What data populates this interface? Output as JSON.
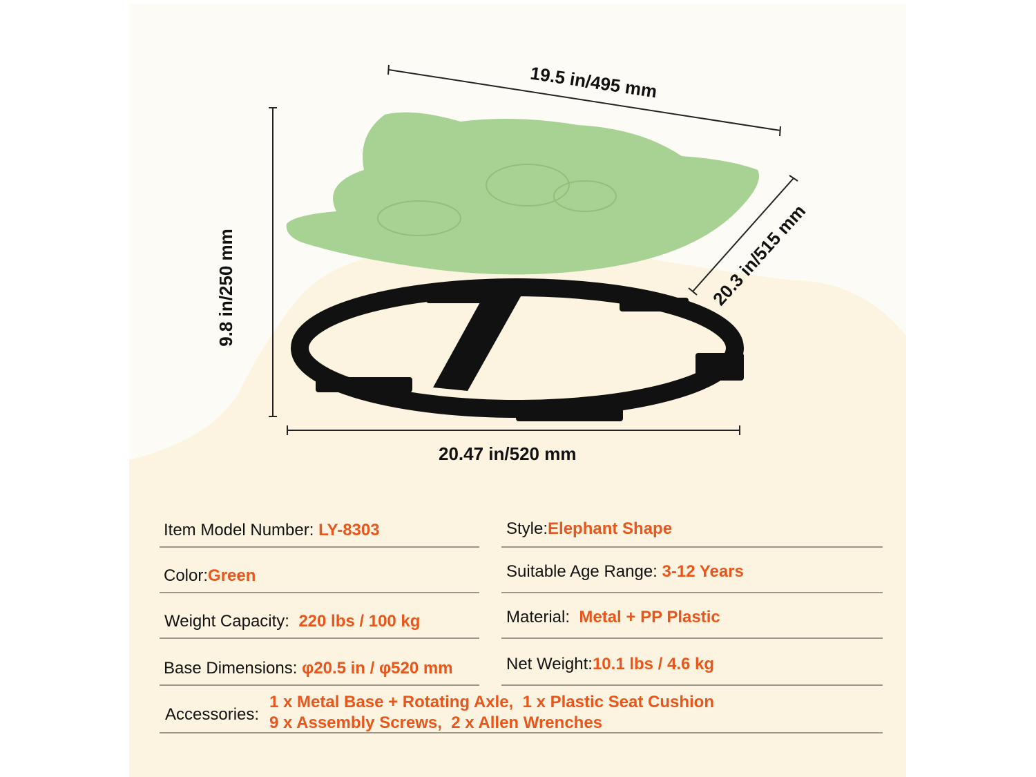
{
  "dimensions": {
    "top_width": "19.5 in/495 mm",
    "depth": "20.3 in/515 mm",
    "height": "9.8 in/250 mm",
    "base_width": "20.47 in/520 mm"
  },
  "specs": {
    "model": {
      "label": "Item Model Number:",
      "value": "LY-8303"
    },
    "style": {
      "label": "Style:",
      "value": "Elephant Shape"
    },
    "color": {
      "label": "Color:",
      "value": "Green"
    },
    "age": {
      "label": "Suitable Age Range:",
      "value": "3-12 Years"
    },
    "capacity": {
      "label": "Weight Capacity:",
      "value": "220 lbs / 100 kg"
    },
    "material": {
      "label": "Material:",
      "value": "Metal + PP Plastic"
    },
    "base": {
      "label": "Base Dimensions:",
      "value": "φ20.5 in / φ520 mm"
    },
    "net_weight": {
      "label": "Net Weight:",
      "value": "10.1 lbs / 4.6 kg"
    },
    "accessories": {
      "label": "Accessories:",
      "line1": "1 x Metal Base + Rotating Axle,  1 x Plastic Seat Cushion",
      "line2": "9 x Assembly Screws,  2 x Allen Wrenches"
    }
  },
  "colors": {
    "accent": "#e8561c",
    "seat": "#a8d194",
    "background": "#fcf4e0"
  }
}
